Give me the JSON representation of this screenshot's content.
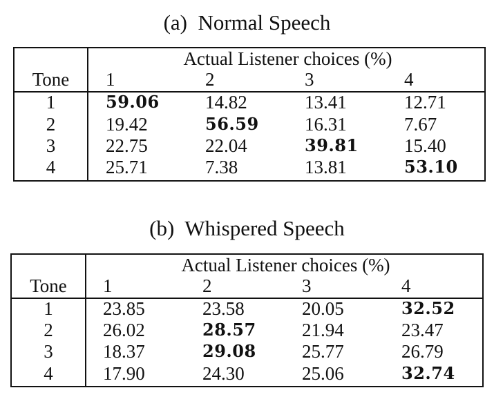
{
  "table_a": {
    "caption": "(a)  Normal Speech",
    "group_header": "Actual Listener choices (%)",
    "row_header": "Tone",
    "columns": [
      "1",
      "2",
      "3",
      "4"
    ],
    "rows": [
      {
        "tone": "1",
        "values": [
          "59.06",
          "14.82",
          "13.41",
          "12.71"
        ],
        "bold_index": 0
      },
      {
        "tone": "2",
        "values": [
          "19.42",
          "56.59",
          "16.31",
          "7.67"
        ],
        "bold_index": 1
      },
      {
        "tone": "3",
        "values": [
          "22.75",
          "22.04",
          "39.81",
          "15.40"
        ],
        "bold_index": 2
      },
      {
        "tone": "4",
        "values": [
          "25.71",
          "7.38",
          "13.81",
          "53.10"
        ],
        "bold_index": 3
      }
    ]
  },
  "table_b": {
    "caption": "(b)  Whispered Speech",
    "group_header": "Actual Listener choices (%)",
    "row_header": "Tone",
    "columns": [
      "1",
      "2",
      "3",
      "4"
    ],
    "rows": [
      {
        "tone": "1",
        "values": [
          "23.85",
          "23.58",
          "20.05",
          "32.52"
        ],
        "bold_index": 3
      },
      {
        "tone": "2",
        "values": [
          "26.02",
          "28.57",
          "21.94",
          "23.47"
        ],
        "bold_index": 1
      },
      {
        "tone": "3",
        "values": [
          "18.37",
          "29.08",
          "25.77",
          "26.79"
        ],
        "bold_index": 1
      },
      {
        "tone": "4",
        "values": [
          "17.90",
          "24.30",
          "25.06",
          "32.74"
        ],
        "bold_index": 3
      }
    ]
  }
}
